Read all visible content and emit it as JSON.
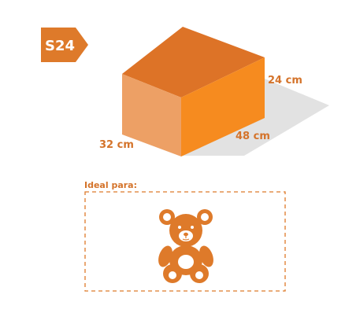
{
  "badge": {
    "label": "S24"
  },
  "box": {
    "dimensions": {
      "height": "24 cm",
      "length": "48 cm",
      "depth": "32 cm"
    }
  },
  "ideal": {
    "heading": "Ideal para:",
    "icon": "teddy-bear-icon"
  },
  "colors": {
    "accent": "#de7a2a",
    "box_top": "#dd7327",
    "box_front": "#f68b1f",
    "box_side": "#eda065",
    "shadow": "#e2e2e2",
    "label": "#d4732a"
  }
}
